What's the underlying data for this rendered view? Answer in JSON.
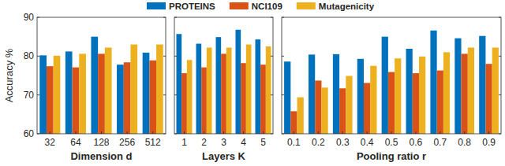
{
  "chart_data": [
    {
      "type": "bar",
      "x_label": "Dimension d",
      "y_label": "Accuracy %",
      "legend": "top",
      "categories": [
        "32",
        "64",
        "128",
        "256",
        "512"
      ],
      "series": [
        {
          "name": "PROTEINS",
          "color": "#0072bd",
          "values": [
            80.2,
            81.2,
            85.0,
            77.8,
            80.9
          ]
        },
        {
          "name": "NCI109",
          "color": "#d95319",
          "values": [
            77.4,
            77.1,
            80.6,
            78.4,
            78.9
          ]
        },
        {
          "name": "Mutagenicity",
          "color": "#edb120",
          "values": [
            80.1,
            80.6,
            82.2,
            83.0,
            83.0
          ]
        }
      ],
      "ylim": [
        60,
        90
      ],
      "yticks": [
        60,
        70,
        80,
        90
      ],
      "grid": false
    },
    {
      "type": "bar",
      "x_label": "Layers K",
      "tick_labels": "x",
      "categories": [
        "1",
        "2",
        "3",
        "4",
        "5"
      ],
      "series": [
        {
          "name": "PROTEINS",
          "color": "#0072bd",
          "values": [
            85.7,
            83.2,
            84.9,
            86.8,
            84.3
          ]
        },
        {
          "name": "NCI109",
          "color": "#d95319",
          "values": [
            75.6,
            77.1,
            80.6,
            78.2,
            77.8
          ]
        },
        {
          "name": "Mutagenicity",
          "color": "#edb120",
          "values": [
            79.0,
            82.2,
            82.2,
            83.0,
            82.5
          ]
        }
      ],
      "ylim": [
        60,
        90
      ],
      "yticks": [
        60,
        70,
        80,
        90
      ],
      "grid": false
    },
    {
      "type": "bar",
      "x_label": "Pooling ratio r",
      "tick_labels": "x",
      "categories": [
        "0.1",
        "0.2",
        "0.3",
        "0.4",
        "0.5",
        "0.6",
        "0.7",
        "0.8",
        "0.9"
      ],
      "series": [
        {
          "name": "PROTEINS",
          "color": "#0072bd",
          "values": [
            78.6,
            80.4,
            80.5,
            79.3,
            85.0,
            81.9,
            86.6,
            84.6,
            85.2
          ]
        },
        {
          "name": "NCI109",
          "color": "#d95319",
          "values": [
            65.8,
            73.7,
            71.7,
            73.1,
            75.9,
            75.6,
            76.3,
            80.6,
            78.0
          ]
        },
        {
          "name": "Mutagenicity",
          "color": "#edb120",
          "values": [
            69.4,
            71.9,
            74.9,
            77.5,
            79.4,
            79.9,
            81.0,
            82.2,
            82.2
          ]
        }
      ],
      "ylim": [
        60,
        90
      ],
      "yticks": [
        60,
        70,
        80,
        90
      ],
      "grid": false
    }
  ]
}
